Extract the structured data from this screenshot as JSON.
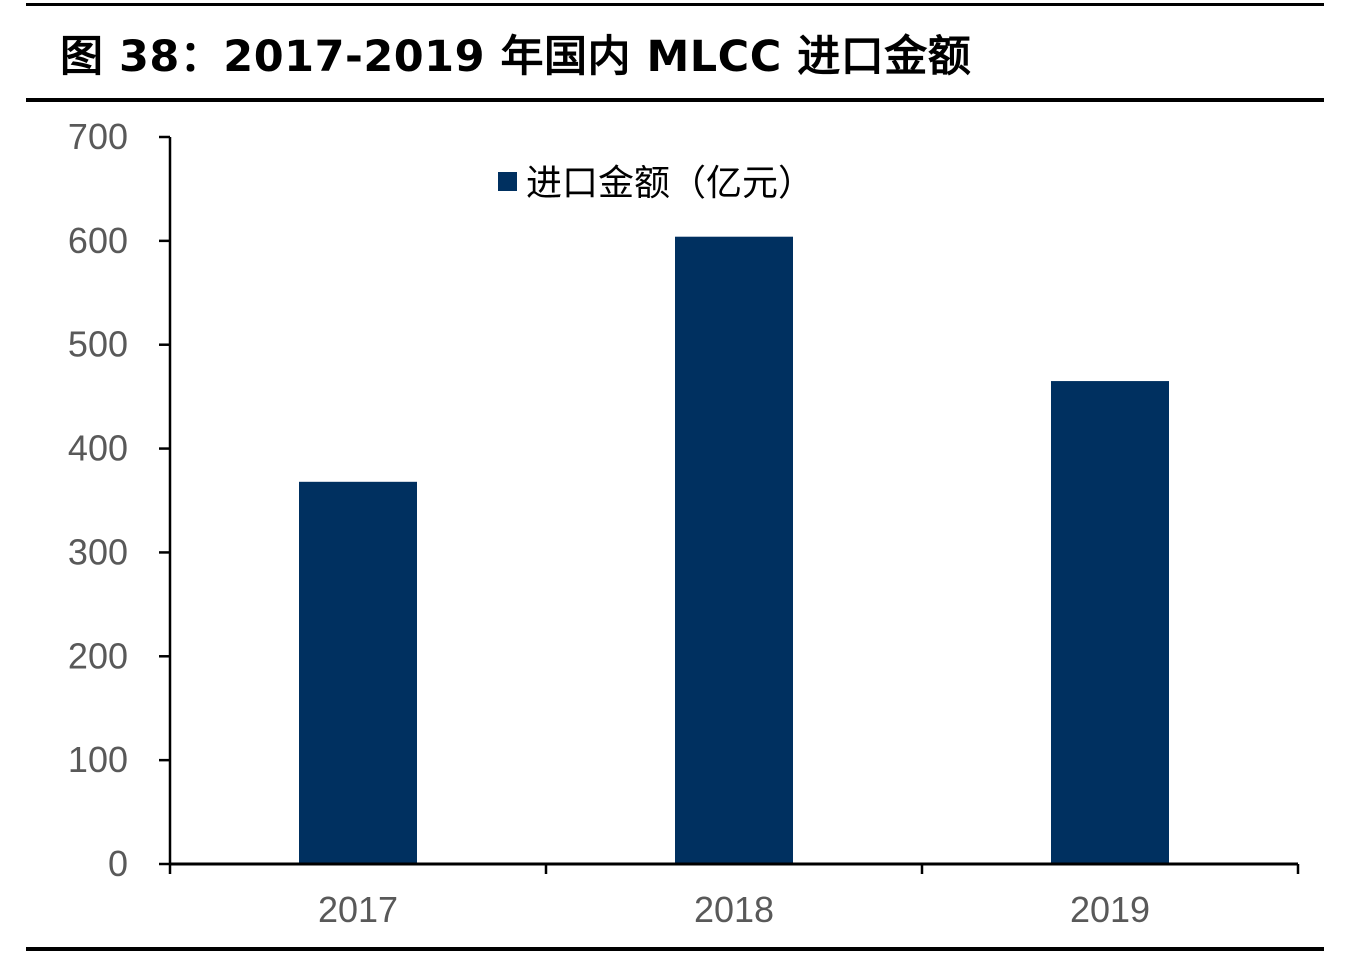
{
  "page": {
    "title": "图 38：2017-2019 年国内 MLCC 进口金额"
  },
  "chart_data": {
    "type": "bar",
    "categories": [
      "2017",
      "2018",
      "2019"
    ],
    "series": [
      {
        "name": "进口金额（亿元）",
        "values": [
          368,
          604,
          465
        ],
        "color": "#003060"
      }
    ],
    "ylim": [
      0,
      700
    ],
    "yticks": [
      0,
      100,
      200,
      300,
      400,
      500,
      600,
      700
    ],
    "legend_position": "top-center",
    "grid": false
  }
}
